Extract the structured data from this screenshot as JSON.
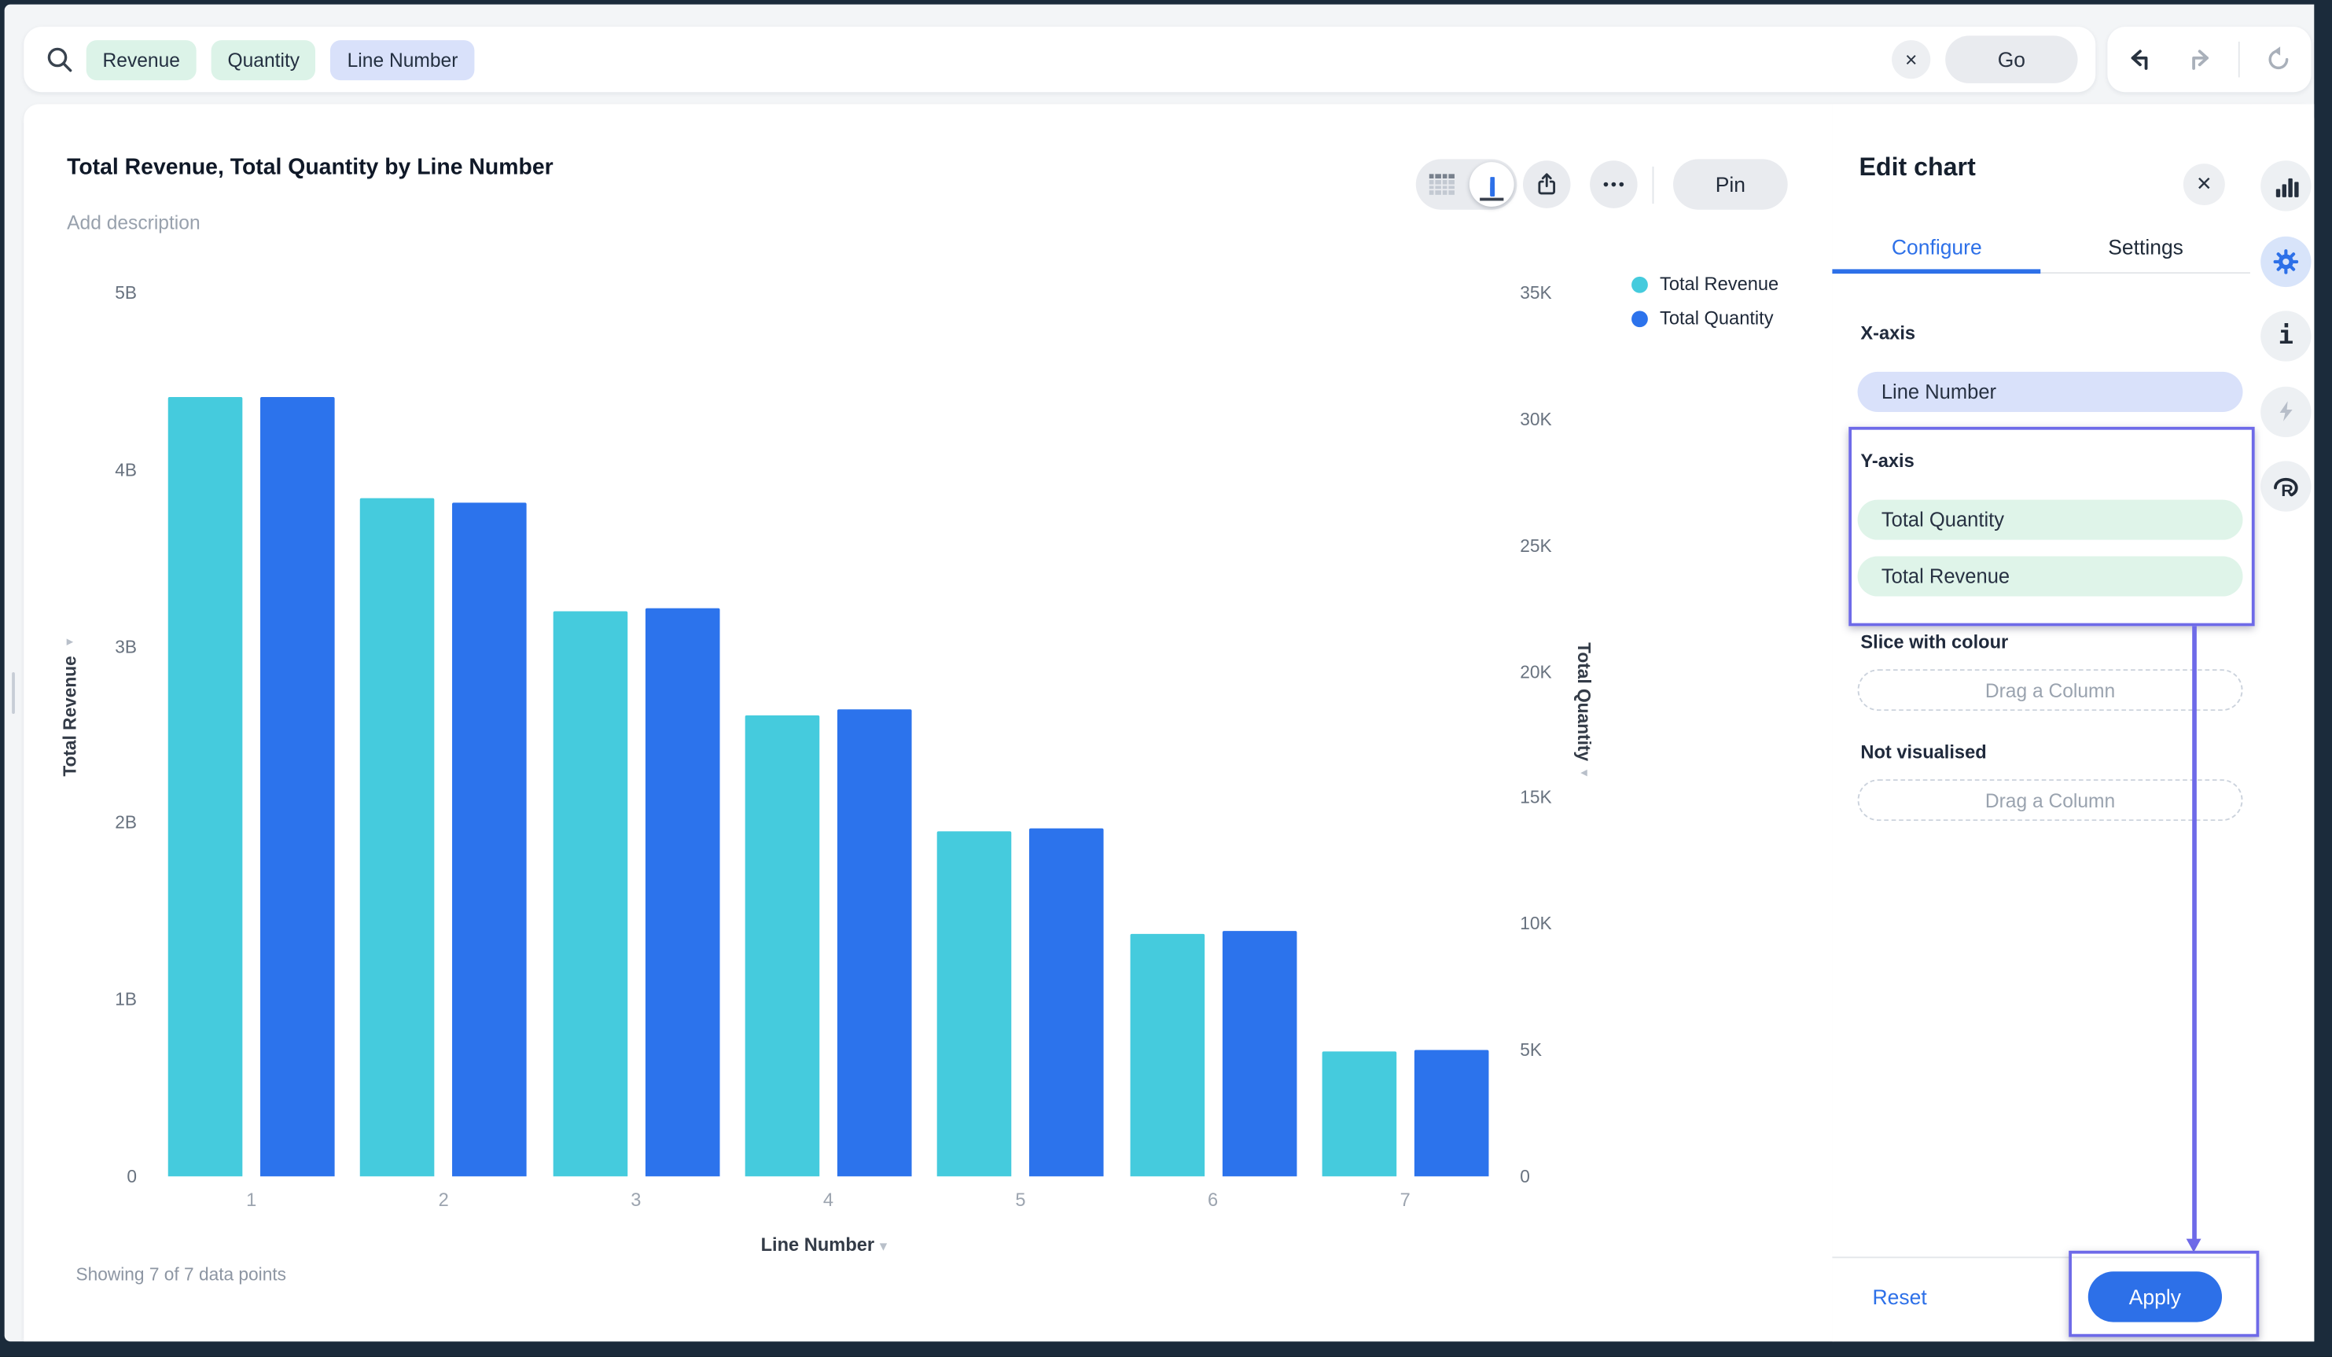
{
  "colors": {
    "accent_blue": "#2d70e8",
    "bar_cyan": "#45cbdd",
    "bar_blue": "#2c73ec",
    "tag_measure_bg": "#dcf3e8",
    "tag_dimension_bg": "#d9e1fa",
    "pill_mint_bg": "#dff4e9",
    "pill_lavender_bg": "#d9e1fa",
    "annotation_purple": "#6e6ae8"
  },
  "search_bar": {
    "tags": [
      {
        "label": "Revenue",
        "type": "measure"
      },
      {
        "label": "Quantity",
        "type": "measure"
      },
      {
        "label": "Line Number",
        "type": "dimension"
      }
    ],
    "go_label": "Go",
    "clear_label": "×"
  },
  "history_toolbar": {
    "icons": [
      "undo-icon",
      "redo-icon",
      "refresh-icon"
    ]
  },
  "chart_card": {
    "title": "Total Revenue, Total Quantity by Line Number",
    "description_placeholder": "Add description",
    "pin_label": "Pin",
    "footnote": "Showing 7 of 7 data points",
    "toolbar_icons": [
      "table-view-icon",
      "chart-view-icon",
      "share-icon",
      "more-options-icon"
    ]
  },
  "chart_data": {
    "type": "bar",
    "title": "Total Revenue, Total Quantity by Line Number",
    "categories": [
      "1",
      "2",
      "3",
      "4",
      "5",
      "6",
      "7"
    ],
    "series": [
      {
        "name": "Total Revenue",
        "axis": "left",
        "unit": "B",
        "color": "#45cbdd",
        "values": [
          4.41,
          3.84,
          3.2,
          2.61,
          1.95,
          1.37,
          0.71
        ]
      },
      {
        "name": "Total Quantity",
        "axis": "right",
        "unit": "K",
        "color": "#2c73ec",
        "values": [
          30.9,
          26.7,
          22.5,
          18.5,
          13.8,
          9.7,
          5.0
        ]
      }
    ],
    "left_axis": {
      "label": "Total Revenue",
      "ticks": [
        "0",
        "1B",
        "2B",
        "3B",
        "4B",
        "5B"
      ],
      "max": 5
    },
    "right_axis": {
      "label": "Total Quantity",
      "ticks": [
        "0",
        "5K",
        "10K",
        "15K",
        "20K",
        "25K",
        "30K",
        "35K"
      ],
      "max": 35
    },
    "x_axis": {
      "label": "Line Number"
    },
    "legend_position": "top-right",
    "grid": false
  },
  "edit_panel": {
    "title": "Edit chart",
    "close_label": "✕",
    "tabs": [
      {
        "label": "Configure",
        "active": true
      },
      {
        "label": "Settings",
        "active": false
      }
    ],
    "sections": {
      "x_axis": {
        "label": "X-axis",
        "pill": "Line Number"
      },
      "y_axis": {
        "label": "Y-axis",
        "pills": [
          {
            "label": "Total Quantity"
          },
          {
            "label": "Total Revenue"
          }
        ]
      },
      "slice": {
        "label": "Slice with colour",
        "placeholder": "Drag a Column"
      },
      "not_visualised": {
        "label": "Not visualised",
        "placeholder": "Drag a Column"
      }
    },
    "footer": {
      "reset_label": "Reset",
      "apply_label": "Apply"
    }
  },
  "right_rail": {
    "icons": [
      {
        "name": "chart-bars-icon",
        "active": false
      },
      {
        "name": "gear-icon",
        "active": true
      },
      {
        "name": "info-icon",
        "active": false
      },
      {
        "name": "lightning-icon",
        "active": false
      },
      {
        "name": "r-logo-icon",
        "active": false
      }
    ]
  }
}
